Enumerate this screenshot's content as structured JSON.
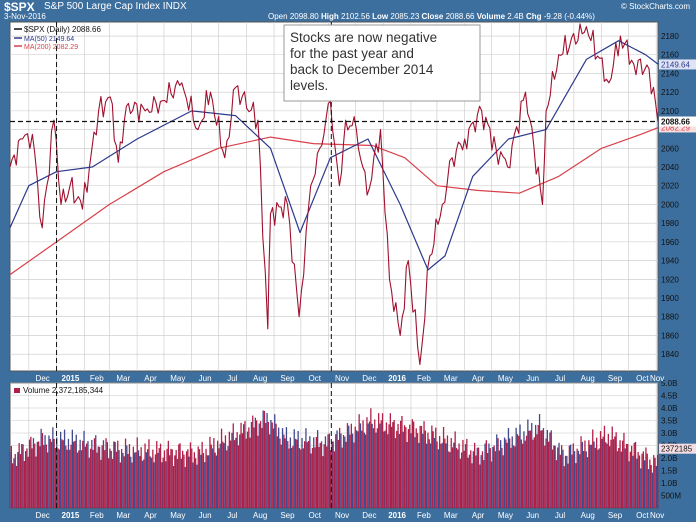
{
  "header": {
    "symbol": "$SPX",
    "name": "S&P 500 Large Cap Index",
    "exchange": "INDX",
    "date": "3-Nov-2016",
    "open_label": "Open",
    "open": "2098.80",
    "high_label": "High",
    "high": "2102.56",
    "low_label": "Low",
    "low": "2085.23",
    "close_label": "Close",
    "close": "2088.66",
    "volume_label": "Volume",
    "volume": "2.4B",
    "chg_label": "Chg",
    "chg": "-9.28 (-0.44%)",
    "credit": "© StockCharts.com"
  },
  "legend": {
    "price": "$SPX (Daily) 2088.66",
    "ma50": "MA(50) 2149.64",
    "ma200": "MA(200) 2082.29"
  },
  "volume_legend": "Volume 2,372,185,344",
  "annotation": "Stocks are now negative for the past year and back to December 2014 levels.",
  "price_tags": {
    "ma50": "2149.64",
    "close": "2088.66",
    "ma200": "2082.29",
    "volume": "2372185"
  },
  "colors": {
    "frame": "#3d6f9e",
    "price_line": "#a0102e",
    "ma50": "#2c3a8c",
    "ma200": "#d8404a",
    "volume_bar": "#b02048",
    "grid": "#c8c8c8"
  },
  "chart_data": [
    {
      "type": "line",
      "x_ticks": [
        "Dec",
        "2015",
        "Feb",
        "Mar",
        "Apr",
        "May",
        "Jun",
        "Jul",
        "Aug",
        "Sep",
        "Oct",
        "Nov",
        "Dec",
        "2016",
        "Feb",
        "Mar",
        "Apr",
        "May",
        "Jun",
        "Jul",
        "Aug",
        "Sep",
        "Oct",
        "Nov"
      ],
      "y_ticks": [
        1840,
        1860,
        1880,
        1900,
        1920,
        1940,
        1960,
        1980,
        2000,
        2020,
        2040,
        2060,
        2080,
        2100,
        2120,
        2140,
        2160,
        2180
      ],
      "ylim": [
        1822,
        2195
      ],
      "x_range_months": [
        "2014-11-10",
        "2016-11-03"
      ],
      "reference_line": 2088.66,
      "series": [
        {
          "name": "$SPX (Daily)",
          "x": [
            "2014-11-10",
            "2014-11-24",
            "2014-12-05",
            "2014-12-16",
            "2014-12-29",
            "2015-01-06",
            "2015-01-16",
            "2015-01-30",
            "2015-02-17",
            "2015-03-02",
            "2015-03-11",
            "2015-03-20",
            "2015-04-10",
            "2015-04-27",
            "2015-05-21",
            "2015-06-08",
            "2015-06-22",
            "2015-07-08",
            "2015-07-20",
            "2015-08-14",
            "2015-08-25",
            "2015-08-28",
            "2015-09-16",
            "2015-09-29",
            "2015-10-12",
            "2015-10-22",
            "2015-11-03",
            "2015-11-13",
            "2015-11-20",
            "2015-12-02",
            "2015-12-14",
            "2015-12-29",
            "2016-01-08",
            "2016-01-20",
            "2016-01-29",
            "2016-02-11",
            "2016-02-22",
            "2016-03-07",
            "2016-03-18",
            "2016-04-01",
            "2016-04-20",
            "2016-05-06",
            "2016-05-19",
            "2016-06-08",
            "2016-06-27",
            "2016-07-01",
            "2016-07-15",
            "2016-08-15",
            "2016-09-09",
            "2016-09-22",
            "2016-10-07",
            "2016-10-24",
            "2016-11-03"
          ],
          "values": [
            2040,
            2070,
            2075,
            1975,
            2090,
            2000,
            2020,
            1995,
            2100,
            2115,
            2045,
            2105,
            2100,
            2110,
            2130,
            2080,
            2120,
            2050,
            2125,
            2090,
            1867,
            1990,
            2000,
            1880,
            2020,
            2060,
            2110,
            2020,
            2090,
            2080,
            2010,
            2080,
            1920,
            1860,
            1940,
            1829,
            1945,
            2000,
            2050,
            2070,
            2100,
            2060,
            2040,
            2120,
            2000,
            2100,
            2160,
            2190,
            2130,
            2180,
            2150,
            2145,
            2088
          ]
        },
        {
          "name": "MA(50)",
          "x": [
            "2014-11-10",
            "2014-12-01",
            "2015-01-01",
            "2015-02-10",
            "2015-04-01",
            "2015-06-01",
            "2015-07-20",
            "2015-08-28",
            "2015-09-30",
            "2015-11-03",
            "2015-12-15",
            "2016-01-20",
            "2016-02-20",
            "2016-03-10",
            "2016-04-10",
            "2016-05-20",
            "2016-07-01",
            "2016-08-15",
            "2016-09-20",
            "2016-10-20",
            "2016-11-03"
          ],
          "values": [
            1975,
            2020,
            2035,
            2040,
            2070,
            2100,
            2095,
            2060,
            1970,
            2050,
            2070,
            2000,
            1930,
            1945,
            2030,
            2070,
            2080,
            2155,
            2175,
            2160,
            2150
          ]
        },
        {
          "name": "MA(200)",
          "x": [
            "2014-11-10",
            "2015-01-01",
            "2015-03-01",
            "2015-05-01",
            "2015-07-01",
            "2015-08-28",
            "2015-10-15",
            "2015-12-20",
            "2016-01-25",
            "2016-03-01",
            "2016-04-15",
            "2016-06-01",
            "2016-07-15",
            "2016-09-01",
            "2016-10-15",
            "2016-11-03"
          ],
          "values": [
            1925,
            1960,
            2000,
            2035,
            2060,
            2072,
            2065,
            2063,
            2050,
            2020,
            2015,
            2012,
            2030,
            2060,
            2075,
            2082
          ]
        }
      ]
    },
    {
      "type": "bar",
      "name": "Volume",
      "ylim": [
        0,
        5000000000
      ],
      "y_ticks": [
        "500M",
        "1.0B",
        "1.5B",
        "2.0B",
        "2.5B",
        "3.0B",
        "3.5B",
        "4.0B",
        "4.5B",
        "5.0B"
      ],
      "x": [
        "2014-11-10",
        "2014-12-16",
        "2015-01-15",
        "2015-03-16",
        "2015-06-10",
        "2015-08-24",
        "2015-09-15",
        "2015-10-30",
        "2015-12-18",
        "2016-01-20",
        "2016-02-11",
        "2016-04-15",
        "2016-06-24",
        "2016-07-20",
        "2016-09-09",
        "2016-11-03"
      ],
      "values": [
        2800000000,
        3800000000,
        3700000000,
        3200000000,
        3000000000,
        5000000000,
        3800000000,
        3600000000,
        4800000000,
        4500000000,
        4300000000,
        3000000000,
        4500000000,
        2900000000,
        4000000000,
        2372185344
      ]
    }
  ]
}
